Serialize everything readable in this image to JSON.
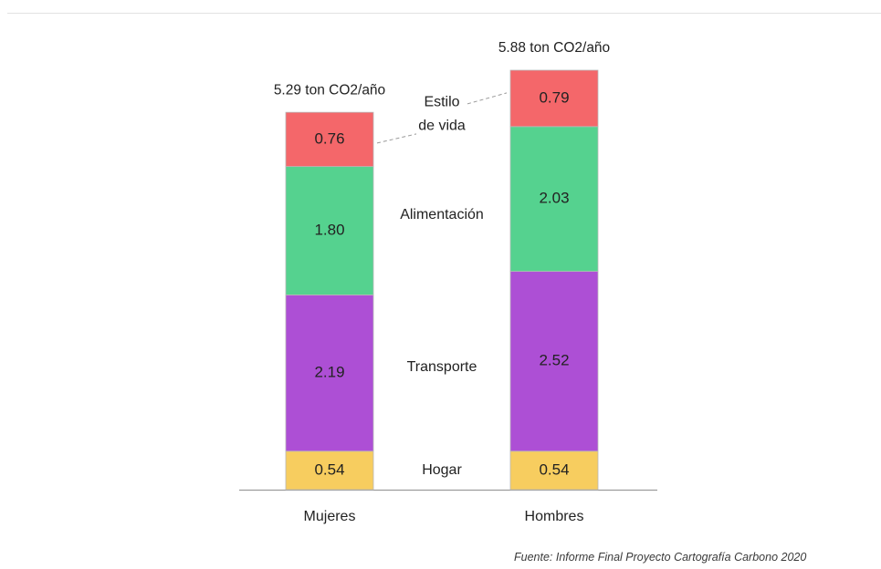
{
  "chart_data": {
    "type": "bar",
    "stacked": true,
    "categories": [
      "Mujeres",
      "Hombres"
    ],
    "totals": [
      "5.29 ton CO2/año",
      "5.88 ton CO2/año"
    ],
    "series": [
      {
        "name": "Hogar",
        "values": [
          0.54,
          0.54
        ],
        "labels": [
          "0.54",
          "0.54"
        ],
        "color": "#f7cd5f"
      },
      {
        "name": "Transporte",
        "values": [
          2.19,
          2.52
        ],
        "labels": [
          "2.19",
          "2.52"
        ],
        "color": "#ad4fd5"
      },
      {
        "name": "Alimentación",
        "values": [
          1.8,
          2.03
        ],
        "labels": [
          "1.80",
          "2.03"
        ],
        "color": "#55d28f"
      },
      {
        "name": "Estilo de vida",
        "label_lines": [
          "Estilo",
          "de vida"
        ],
        "values": [
          0.76,
          0.79
        ],
        "labels": [
          "0.76",
          "0.79"
        ],
        "color": "#f4676a"
      }
    ],
    "legend": "inline labels between bars",
    "grid": false,
    "ylim": [
      0,
      5.88
    ],
    "xlabel": "",
    "ylabel": ""
  },
  "source": "Fuente: Informe Final Proyecto Cartografía Carbono 2020"
}
